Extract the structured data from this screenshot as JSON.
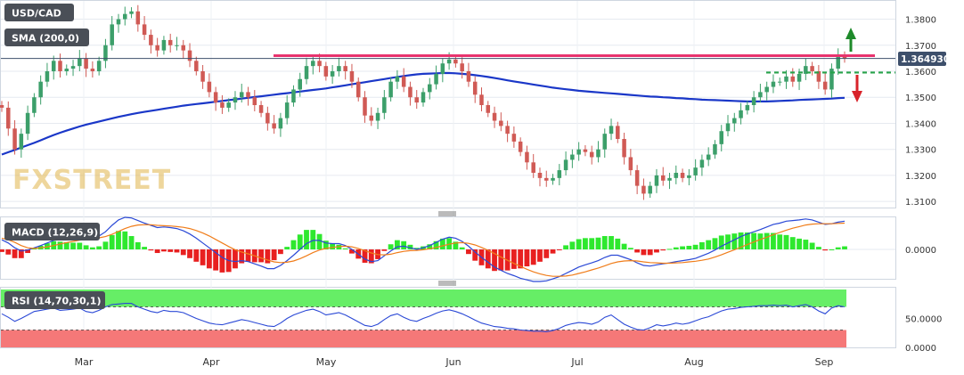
{
  "symbol": "USD/CAD",
  "indicators": {
    "sma_label": "SMA (200,0)",
    "macd_label": "MACD (12,26,9)",
    "rsi_label": "RSI (14,70,30,1)"
  },
  "watermark": "FXSTREET",
  "last_price_label": "1.364930",
  "months": [
    "Mar",
    "Apr",
    "May",
    "Jun",
    "Jul",
    "Aug",
    "Sep"
  ],
  "colors": {
    "bull": "#3c9f6a",
    "bear": "#d05a55",
    "sma": "#1a37c8",
    "resistance": "#e8336e",
    "support": "#27a34a",
    "macd_line": "#2b49d6",
    "signal_line": "#f07d1a",
    "hist_pos": "#2ee82e",
    "hist_neg": "#e82020",
    "rsi_line": "#2b49d6",
    "overbought_zone": "#66ee66",
    "oversold_zone": "#f57878",
    "up_arrow": "#1e8a2a",
    "down_arrow": "#d8232a"
  },
  "chart_data": [
    {
      "type": "candlestick",
      "title": "USD/CAD",
      "y_ticks": [
        "1.3800",
        "1.3700",
        "1.3600",
        "1.3500",
        "1.3400",
        "1.3300",
        "1.3200",
        "1.3100"
      ],
      "ylim": [
        1.308,
        1.386
      ],
      "x_ticks": [
        "Mar",
        "Apr",
        "May",
        "Jun",
        "Jul",
        "Aug",
        "Sep"
      ],
      "last_price": 1.36493,
      "resistance_level": 1.366,
      "support_level": 1.3595,
      "close": [
        1.346,
        1.338,
        1.33,
        1.336,
        1.344,
        1.35,
        1.356,
        1.36,
        1.364,
        1.36,
        1.361,
        1.362,
        1.365,
        1.361,
        1.36,
        1.364,
        1.37,
        1.378,
        1.38,
        1.382,
        1.383,
        1.378,
        1.374,
        1.37,
        1.368,
        1.372,
        1.37,
        1.37,
        1.368,
        1.364,
        1.36,
        1.356,
        1.352,
        1.348,
        1.346,
        1.348,
        1.35,
        1.352,
        1.35,
        1.347,
        1.344,
        1.34,
        1.338,
        1.342,
        1.348,
        1.353,
        1.357,
        1.362,
        1.364,
        1.362,
        1.358,
        1.36,
        1.362,
        1.36,
        1.356,
        1.35,
        1.343,
        1.341,
        1.344,
        1.35,
        1.356,
        1.358,
        1.354,
        1.35,
        1.348,
        1.352,
        1.355,
        1.359,
        1.363,
        1.3645,
        1.363,
        1.36,
        1.356,
        1.351,
        1.347,
        1.344,
        1.341,
        1.339,
        1.336,
        1.333,
        1.329,
        1.325,
        1.321,
        1.319,
        1.318,
        1.319,
        1.322,
        1.326,
        1.328,
        1.33,
        1.329,
        1.327,
        1.33,
        1.336,
        1.339,
        1.334,
        1.327,
        1.322,
        1.316,
        1.313,
        1.316,
        1.32,
        1.318,
        1.319,
        1.321,
        1.319,
        1.32,
        1.323,
        1.326,
        1.328,
        1.332,
        1.337,
        1.34,
        1.342,
        1.345,
        1.347,
        1.35,
        1.352,
        1.354,
        1.356,
        1.356,
        1.358,
        1.356,
        1.359,
        1.362,
        1.36,
        1.356,
        1.353,
        1.361,
        1.366,
        1.3649
      ],
      "sma200": [
        1.328,
        1.3289,
        1.3298,
        1.3307,
        1.3316,
        1.3325,
        1.3335,
        1.3345,
        1.3355,
        1.3364,
        1.3372,
        1.338,
        1.3388,
        1.3395,
        1.3401,
        1.3407,
        1.3413,
        1.3419,
        1.3425,
        1.343,
        1.3435,
        1.344,
        1.3444,
        1.3448,
        1.3452,
        1.3456,
        1.346,
        1.3464,
        1.3468,
        1.3471,
        1.3474,
        1.3477,
        1.348,
        1.3483,
        1.3486,
        1.3489,
        1.3492,
        1.3495,
        1.3498,
        1.3501,
        1.3504,
        1.3507,
        1.351,
        1.3513,
        1.3516,
        1.3519,
        1.3522,
        1.3525,
        1.3528,
        1.3531,
        1.3534,
        1.3538,
        1.3542,
        1.3546,
        1.355,
        1.3554,
        1.3558,
        1.3562,
        1.3566,
        1.357,
        1.3574,
        1.3578,
        1.3582,
        1.3585,
        1.3588,
        1.359,
        1.3591,
        1.3592,
        1.3593,
        1.3593,
        1.3592,
        1.359,
        1.3588,
        1.3585,
        1.3582,
        1.3578,
        1.3574,
        1.357,
        1.3565,
        1.3561,
        1.3557,
        1.3553,
        1.3549,
        1.3545,
        1.3541,
        1.3537,
        1.3534,
        1.3531,
        1.3528,
        1.3525,
        1.3523,
        1.3521,
        1.3519,
        1.3517,
        1.3515,
        1.3513,
        1.3511,
        1.3509,
        1.3507,
        1.3505,
        1.3503,
        1.3502,
        1.35,
        1.3499,
        1.3497,
        1.3496,
        1.3494,
        1.3493,
        1.3491,
        1.349,
        1.3489,
        1.3488,
        1.3487,
        1.3486,
        1.3485,
        1.3484,
        1.3484,
        1.3484,
        1.3484,
        1.3485,
        1.3486,
        1.3487,
        1.3488,
        1.349,
        1.3491,
        1.3492,
        1.3493,
        1.3494,
        1.3495,
        1.3497,
        1.3498
      ]
    },
    {
      "type": "line",
      "title": "MACD (12,26,9)",
      "y_ticks": [
        "0.0000"
      ],
      "ylim": [
        -1,
        1
      ],
      "macd": [
        0.3,
        0.2,
        0.05,
        -0.05,
        -0.02,
        0.05,
        0.12,
        0.2,
        0.28,
        0.32,
        0.35,
        0.38,
        0.42,
        0.4,
        0.38,
        0.42,
        0.55,
        0.75,
        0.92,
        1.0,
        0.98,
        0.9,
        0.82,
        0.75,
        0.68,
        0.7,
        0.68,
        0.65,
        0.58,
        0.48,
        0.35,
        0.2,
        0.05,
        -0.1,
        -0.25,
        -0.35,
        -0.38,
        -0.35,
        -0.38,
        -0.45,
        -0.52,
        -0.6,
        -0.6,
        -0.5,
        -0.35,
        -0.18,
        0.0,
        0.18,
        0.28,
        0.28,
        0.2,
        0.18,
        0.18,
        0.12,
        0.0,
        -0.15,
        -0.3,
        -0.38,
        -0.35,
        -0.2,
        -0.05,
        0.08,
        0.1,
        0.05,
        0.0,
        0.05,
        0.12,
        0.22,
        0.32,
        0.38,
        0.35,
        0.25,
        0.1,
        -0.08,
        -0.25,
        -0.4,
        -0.55,
        -0.65,
        -0.75,
        -0.82,
        -0.9,
        -0.95,
        -1.0,
        -1.0,
        -0.98,
        -0.92,
        -0.85,
        -0.75,
        -0.65,
        -0.55,
        -0.48,
        -0.42,
        -0.35,
        -0.25,
        -0.18,
        -0.18,
        -0.25,
        -0.32,
        -0.42,
        -0.5,
        -0.52,
        -0.48,
        -0.45,
        -0.42,
        -0.38,
        -0.35,
        -0.32,
        -0.28,
        -0.2,
        -0.12,
        -0.02,
        0.1,
        0.2,
        0.3,
        0.4,
        0.48,
        0.55,
        0.62,
        0.7,
        0.78,
        0.82,
        0.88,
        0.9,
        0.92,
        0.95,
        0.92,
        0.85,
        0.78,
        0.8,
        0.85,
        0.88
      ],
      "signal": [
        0.35,
        0.3,
        0.22,
        0.12,
        0.05,
        0.03,
        0.05,
        0.08,
        0.12,
        0.17,
        0.21,
        0.25,
        0.29,
        0.32,
        0.34,
        0.36,
        0.4,
        0.47,
        0.56,
        0.65,
        0.72,
        0.76,
        0.77,
        0.77,
        0.75,
        0.74,
        0.73,
        0.71,
        0.69,
        0.65,
        0.59,
        0.51,
        0.42,
        0.31,
        0.2,
        0.09,
        -0.01,
        -0.08,
        -0.14,
        -0.2,
        -0.27,
        -0.33,
        -0.39,
        -0.41,
        -0.4,
        -0.36,
        -0.29,
        -0.2,
        -0.1,
        -0.02,
        0.03,
        0.06,
        0.09,
        0.1,
        0.08,
        0.03,
        -0.04,
        -0.11,
        -0.16,
        -0.17,
        -0.15,
        -0.1,
        -0.06,
        -0.04,
        -0.03,
        -0.01,
        0.02,
        0.06,
        0.11,
        0.16,
        0.2,
        0.21,
        0.19,
        0.14,
        0.06,
        -0.03,
        -0.13,
        -0.24,
        -0.34,
        -0.44,
        -0.53,
        -0.62,
        -0.7,
        -0.76,
        -0.81,
        -0.84,
        -0.84,
        -0.83,
        -0.8,
        -0.75,
        -0.7,
        -0.64,
        -0.58,
        -0.51,
        -0.44,
        -0.39,
        -0.36,
        -0.35,
        -0.36,
        -0.39,
        -0.41,
        -0.42,
        -0.43,
        -0.43,
        -0.42,
        -0.41,
        -0.39,
        -0.37,
        -0.34,
        -0.3,
        -0.24,
        -0.17,
        -0.09,
        -0.01,
        0.07,
        0.15,
        0.23,
        0.31,
        0.38,
        0.46,
        0.53,
        0.6,
        0.66,
        0.71,
        0.76,
        0.79,
        0.8,
        0.8,
        0.8,
        0.81,
        0.82
      ]
    },
    {
      "type": "line",
      "title": "RSI (14,70,30,1)",
      "y_ticks": [
        "50.0000",
        "0.0000"
      ],
      "ylim": [
        0,
        100
      ],
      "overbought": 70,
      "oversold": 30,
      "rsi": [
        58,
        52,
        45,
        50,
        56,
        62,
        64,
        66,
        68,
        64,
        65,
        66,
        68,
        62,
        60,
        64,
        70,
        74,
        75,
        76,
        76,
        70,
        66,
        62,
        60,
        64,
        62,
        62,
        60,
        55,
        50,
        46,
        42,
        40,
        39,
        42,
        45,
        48,
        46,
        43,
        40,
        37,
        36,
        42,
        50,
        56,
        60,
        64,
        66,
        62,
        56,
        58,
        60,
        56,
        50,
        44,
        38,
        36,
        40,
        48,
        55,
        58,
        52,
        47,
        45,
        50,
        54,
        59,
        63,
        65,
        62,
        58,
        53,
        47,
        42,
        39,
        36,
        35,
        33,
        32,
        30,
        29,
        28,
        28,
        27,
        29,
        33,
        38,
        41,
        43,
        42,
        40,
        44,
        52,
        56,
        48,
        40,
        35,
        31,
        30,
        34,
        39,
        37,
        39,
        42,
        40,
        42,
        46,
        50,
        53,
        58,
        63,
        66,
        67,
        69,
        70,
        71,
        72,
        72,
        73,
        72,
        73,
        70,
        72,
        74,
        70,
        63,
        58,
        68,
        72,
        70
      ]
    }
  ]
}
